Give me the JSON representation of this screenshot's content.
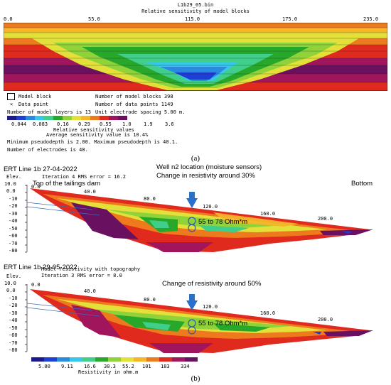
{
  "panel_a": {
    "file_name": "L1b29_05.bin",
    "title": "Relative sensitivity of model blocks",
    "top_ticks": [
      "0.0",
      "55.0",
      "115.0",
      "175.0",
      "235.0"
    ],
    "legend": {
      "model_block": "Model block",
      "data_point": "Data point",
      "blocks_count": "Number of model blocks 398",
      "data_points_count": "Number of data points 1149",
      "layers": "Number of model layers is 13",
      "electrode_spacing": "Unit electrode spacing 5.00 m.",
      "scale_values": [
        "0.044",
        "0.083",
        "0.16",
        "0.29",
        "0.55",
        "1.0",
        "1.9",
        "3.6"
      ],
      "scale_title": "Relative sensitivity values",
      "average": "Average sensitivity value is 10.4%",
      "pseudodepth": "Minimum pseudodepth is 2.00.  Maximum pseudodepth is 40.1.",
      "electrodes": "Number of electrodes is 48."
    },
    "caption": "(a)"
  },
  "panel_b1": {
    "line_label": "ERT Line 1b 27-04-2022",
    "iteration": "Iteration 4 RMS error = 16.2",
    "elev_label": "Elev.",
    "dam_label": "Top of the tailings dam",
    "bottom_label": "Bottom",
    "well_label": "Well n2 location (moisture sensors)",
    "change_label": "Change in resistivity around 30%",
    "range_label": "55 to 78 Ohm*m",
    "x_ticks": [
      "0.0",
      "40.0",
      "80.0",
      "120.0",
      "160.0",
      "200.0"
    ],
    "y_ticks": [
      "10.0",
      "0.0",
      "-10",
      "-20",
      "-30",
      "-40",
      "-50",
      "-60",
      "-70",
      "-80"
    ]
  },
  "panel_b2": {
    "line_label": "ERT Line 1b 29-05-2022",
    "subtitle": "Model resistivity with topography",
    "iteration": "Iteration 3 RMS error = 8.0",
    "elev_label": "Elev.",
    "change_label": "Change of resistivity around 50%",
    "range_label": "55 to 78 Ohm*m",
    "x_ticks": [
      "0.0",
      "40.0",
      "80.0",
      "120.0",
      "160.0",
      "200.0"
    ],
    "y_ticks": [
      "10.0",
      "0.0",
      "-10",
      "-20",
      "-30",
      "-40",
      "-50",
      "-60",
      "-70",
      "-80"
    ],
    "scale_values": [
      "5.00",
      "9.11",
      "16.6",
      "30.3",
      "55.2",
      "101",
      "183",
      "334"
    ],
    "scale_title": "Resistivity in ohm.m",
    "caption": "(b)"
  },
  "colors": {
    "scale": [
      "#1a1a8c",
      "#1e3fd6",
      "#2a8ae0",
      "#36c8e6",
      "#3fcf8a",
      "#28a82a",
      "#8fd23a",
      "#e3e03a",
      "#f5b62a",
      "#ee7a1e",
      "#e02a1e",
      "#a0155c",
      "#6a1060"
    ]
  }
}
